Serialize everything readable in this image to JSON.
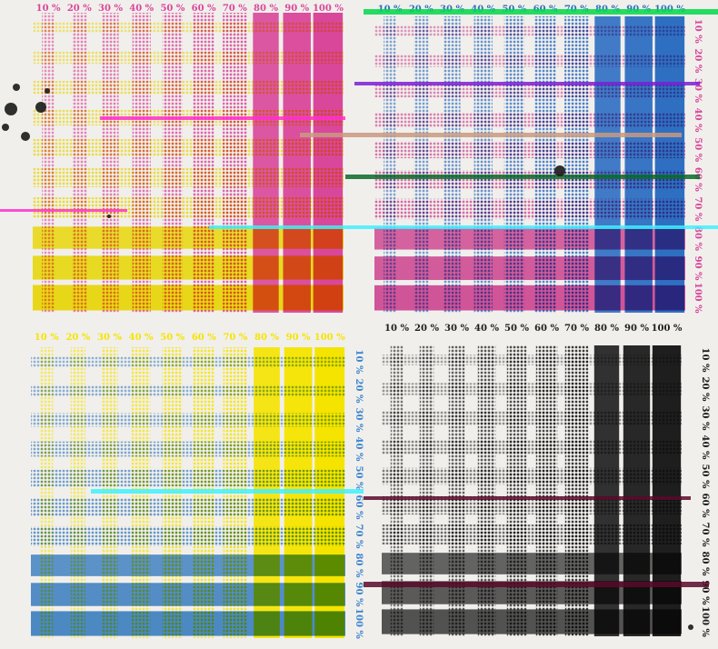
{
  "scene": {
    "description_type": "screen-printed halftone color test chart (photograph of print)",
    "background": "#f1efec"
  },
  "percent_labels": [
    "10 %",
    "20 %",
    "30 %",
    "40 %",
    "50 %",
    "60 %",
    "70 %",
    "80 %",
    "90 %",
    "100 %"
  ],
  "panels": [
    {
      "id": "magenta-yellow",
      "top_ink": "#d9479a",
      "side_ink": "#f5e400",
      "overlap_ink": "#e8663a",
      "label_ink": "#d9479a",
      "levels": [
        0.1,
        0.2,
        0.3,
        0.4,
        0.5,
        0.6,
        0.7,
        0.8,
        0.9,
        1.0
      ]
    },
    {
      "id": "cyan-magenta",
      "top_ink": "#2f6fc2",
      "side_ink": "#d9479a",
      "overlap_ink": "#3b4fa4",
      "label_ink": "#2f6fc2",
      "side_label_ink": "#d9479a",
      "levels": [
        0.1,
        0.2,
        0.3,
        0.4,
        0.5,
        0.6,
        0.7,
        0.8,
        0.9,
        1.0
      ]
    },
    {
      "id": "yellow-cyan",
      "top_ink": "#f5e400",
      "side_ink": "#3d86cf",
      "overlap_ink": "#3a9a3f",
      "label_ink": "#f5e400",
      "side_label_ink": "#3d86cf",
      "levels": [
        0.1,
        0.2,
        0.3,
        0.4,
        0.5,
        0.6,
        0.7,
        0.8,
        0.9,
        1.0
      ]
    },
    {
      "id": "black",
      "top_ink": "#1e1e1e",
      "side_ink": "#1e1e1e",
      "overlap_ink": "#1e1e1e",
      "label_ink": "#1e1e1e",
      "levels": [
        0.1,
        0.2,
        0.3,
        0.4,
        0.5,
        0.6,
        0.7,
        0.8,
        0.9,
        1.0
      ]
    }
  ],
  "glitch_colors": [
    "#ff2fd0",
    "#00d84a",
    "#7a1fd6",
    "#3ff0ff",
    "#c99a80",
    "#5a0a2a",
    "#0a6a2a"
  ]
}
